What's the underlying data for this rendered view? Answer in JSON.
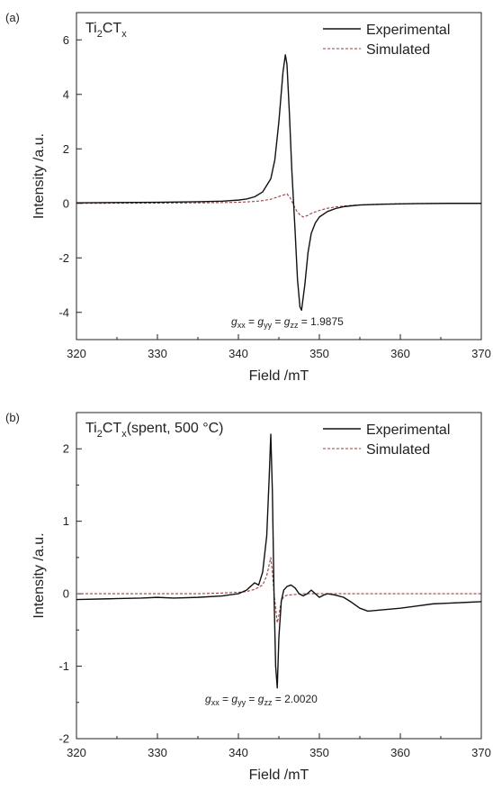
{
  "chart_data": [
    {
      "type": "line",
      "panel_label": "(a)",
      "sample_label": {
        "base": "Ti",
        "sub1": "2",
        "mid": "CT",
        "sub2": "x",
        "suffix": ""
      },
      "xlabel": "Field /mT",
      "ylabel": "Intensity /a.u.",
      "xlim": [
        320,
        370
      ],
      "ylim": [
        -5,
        7
      ],
      "xticks": [
        320,
        330,
        340,
        350,
        360,
        370
      ],
      "xtick_labels": [
        "320",
        "330",
        "340",
        "350",
        "360",
        "370"
      ],
      "yticks": [
        -4,
        -2,
        0,
        2,
        4,
        6
      ],
      "ytick_labels": [
        "-4",
        "-2",
        "0",
        "2",
        "4",
        "6"
      ],
      "legend_position": "top-right",
      "annotation": {
        "g1": "xx",
        "g2": "yy",
        "g3": "zz",
        "value": "= 1.9875"
      },
      "series": [
        {
          "name": "Experimental",
          "style": "solid",
          "color": "#111111",
          "x": [
            320,
            325,
            330,
            335,
            338,
            340,
            341,
            342,
            343,
            344,
            344.5,
            345,
            345.5,
            345.8,
            346,
            346.3,
            346.6,
            347,
            347.3,
            347.6,
            347.8,
            348.2,
            348.6,
            349,
            349.5,
            350,
            351,
            352,
            353,
            355,
            358,
            362,
            366,
            370
          ],
          "y": [
            0.02,
            0.03,
            0.04,
            0.06,
            0.08,
            0.12,
            0.16,
            0.24,
            0.42,
            0.9,
            1.6,
            3.0,
            4.8,
            5.45,
            5.1,
            3.3,
            1.2,
            -1.0,
            -2.8,
            -3.8,
            -3.92,
            -3.0,
            -1.8,
            -1.1,
            -0.72,
            -0.5,
            -0.3,
            -0.19,
            -0.12,
            -0.06,
            -0.03,
            -0.01,
            0.0,
            0.0
          ]
        },
        {
          "name": "Simulated",
          "style": "dashed",
          "color": "#a33a3a",
          "x": [
            320,
            330,
            336,
            340,
            342,
            343,
            344,
            345,
            345.5,
            346,
            346.4,
            346.8,
            347.2,
            347.6,
            348,
            348.5,
            349,
            350,
            351,
            352,
            354,
            357,
            360,
            365,
            370
          ],
          "y": [
            0.0,
            0.01,
            0.02,
            0.04,
            0.07,
            0.1,
            0.15,
            0.25,
            0.3,
            0.35,
            0.2,
            -0.05,
            -0.28,
            -0.42,
            -0.5,
            -0.45,
            -0.37,
            -0.26,
            -0.18,
            -0.13,
            -0.07,
            -0.03,
            -0.01,
            0.0,
            0.0
          ]
        }
      ]
    },
    {
      "type": "line",
      "panel_label": "(b)",
      "sample_label": {
        "base": "Ti",
        "sub1": "2",
        "mid": "CT",
        "sub2": "x",
        "suffix": "(spent, 500 °C)"
      },
      "xlabel": "Field /mT",
      "ylabel": "Intensity /a.u.",
      "xlim": [
        320,
        370
      ],
      "ylim": [
        -2,
        2.5
      ],
      "xticks": [
        320,
        330,
        340,
        350,
        360,
        370
      ],
      "xtick_labels": [
        "320",
        "330",
        "340",
        "350",
        "360",
        "370"
      ],
      "yticks": [
        -2,
        -1,
        0,
        1,
        2
      ],
      "ytick_labels": [
        "-2",
        "-1",
        "0",
        "1",
        "2"
      ],
      "legend_position": "top-right",
      "annotation": {
        "g1": "xx",
        "g2": "yy",
        "g3": "zz",
        "value": "= 2.0020"
      },
      "series": [
        {
          "name": "Experimental",
          "style": "solid",
          "color": "#111111",
          "x": [
            320,
            324,
            328,
            330,
            332,
            335,
            338,
            340,
            341,
            341.5,
            342,
            342.5,
            343,
            343.5,
            343.8,
            344,
            344.2,
            344.4,
            344.6,
            344.8,
            345,
            345.3,
            345.6,
            346,
            346.5,
            347,
            347.5,
            348,
            348.5,
            349,
            349.5,
            350,
            350.5,
            351,
            352,
            353,
            354,
            355,
            356,
            358,
            360,
            362,
            364,
            366,
            368,
            370
          ],
          "y": [
            -0.08,
            -0.07,
            -0.06,
            -0.05,
            -0.06,
            -0.05,
            -0.03,
            0.0,
            0.05,
            0.1,
            0.15,
            0.12,
            0.3,
            0.8,
            1.6,
            2.2,
            1.4,
            0.0,
            -1.0,
            -1.3,
            -0.6,
            -0.1,
            0.05,
            0.1,
            0.12,
            0.08,
            0.0,
            -0.03,
            0.0,
            0.05,
            0.0,
            -0.05,
            -0.02,
            0.0,
            -0.02,
            -0.05,
            -0.12,
            -0.2,
            -0.24,
            -0.22,
            -0.2,
            -0.17,
            -0.14,
            -0.13,
            -0.12,
            -0.11
          ]
        },
        {
          "name": "Simulated",
          "style": "dashed",
          "color": "#a33a3a",
          "x": [
            320,
            330,
            335,
            338,
            340,
            341,
            342,
            343,
            343.5,
            344,
            344.2,
            344.4,
            344.6,
            344.8,
            345,
            345.3,
            345.6,
            346,
            347,
            348,
            349,
            350,
            355,
            360,
            370
          ],
          "y": [
            0.0,
            0.0,
            0.0,
            0.01,
            0.02,
            0.03,
            0.06,
            0.12,
            0.25,
            0.5,
            0.3,
            0.0,
            -0.2,
            -0.4,
            -0.3,
            -0.1,
            -0.04,
            -0.02,
            -0.01,
            0.0,
            0.0,
            0.0,
            0.0,
            0.0,
            0.0
          ]
        }
      ]
    }
  ]
}
